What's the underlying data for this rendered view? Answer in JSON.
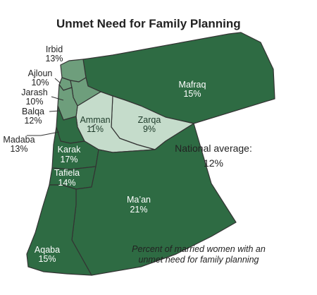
{
  "title": "Unmet Need for Family Planning",
  "colors": {
    "dark_green": "#2e6b43",
    "mid_green": "#6e9e7c",
    "light_green": "#c5dccb",
    "border": "#333333"
  },
  "governorates": [
    {
      "name": "Irbid",
      "value": "13%"
    },
    {
      "name": "Ajloun",
      "value": "10%"
    },
    {
      "name": "Jarash",
      "value": "10%"
    },
    {
      "name": "Balqa",
      "value": "12%"
    },
    {
      "name": "Madaba",
      "value": "13%"
    },
    {
      "name": "Amman",
      "value": "11%"
    },
    {
      "name": "Zarqa",
      "value": "9%"
    },
    {
      "name": "Mafraq",
      "value": "15%"
    },
    {
      "name": "Karak",
      "value": "17%"
    },
    {
      "name": "Tafiela",
      "value": "14%"
    },
    {
      "name": "Ma’an",
      "value": "21%"
    },
    {
      "name": "Aqaba",
      "value": "15%"
    }
  ],
  "national_average": {
    "label": "National average:",
    "value": "12%"
  },
  "caption": {
    "line1": "Percent of married women with an",
    "line2": "unmet need for family planning"
  }
}
